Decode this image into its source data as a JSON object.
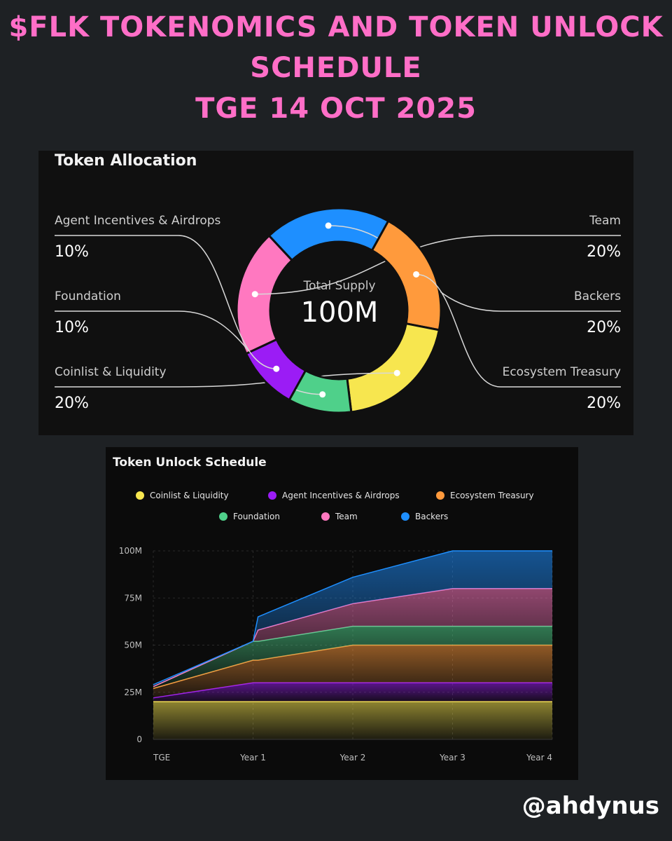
{
  "header": {
    "title_lines": [
      "$FLK TOKENOMICS AND TOKEN UNLOCK",
      "SCHEDULE",
      "TGE 14 OCT 2025"
    ]
  },
  "allocation": {
    "title": "Token Allocation",
    "center_label": "Total Supply",
    "center_value": "100M",
    "segments": [
      {
        "name": "Team",
        "label": "Team",
        "percent_label": "20%",
        "value": 20,
        "color": "#ff78c0"
      },
      {
        "name": "Backers",
        "label": "Backers",
        "percent_label": "20%",
        "value": 20,
        "color": "#1e8fff"
      },
      {
        "name": "Ecosystem Treasury",
        "label": "Ecosystem Treasury",
        "percent_label": "20%",
        "value": 20,
        "color": "#ff9a3c"
      },
      {
        "name": "Coinlist & Liquidity",
        "label": "Coinlist & Liquidity",
        "percent_label": "20%",
        "value": 20,
        "color": "#f7e64f"
      },
      {
        "name": "Foundation",
        "label": "Foundation",
        "percent_label": "10%",
        "value": 10,
        "color": "#4fd08a"
      },
      {
        "name": "Agent Incentives & Airdrops",
        "label": "Agent Incentives & Airdrops",
        "percent_label": "10%",
        "value": 10,
        "color": "#9b1cf5"
      }
    ]
  },
  "unlock": {
    "title": "Token Unlock Schedule",
    "legend": [
      {
        "label": "Coinlist & Liquidity",
        "color": "#f7e64f"
      },
      {
        "label": "Agent Incentives & Airdrops",
        "color": "#9b1cf5"
      },
      {
        "label": "Ecosystem Treasury",
        "color": "#ff9a3c"
      },
      {
        "label": "Foundation",
        "color": "#4fd08a"
      },
      {
        "label": "Team",
        "color": "#ff78c0"
      },
      {
        "label": "Backers",
        "color": "#1e8fff"
      }
    ]
  },
  "chart_data": {
    "type": "area",
    "stacked": true,
    "x": [
      0,
      1,
      1.05,
      2,
      3,
      4
    ],
    "x_ticks": [
      {
        "value": 0,
        "label": "TGE"
      },
      {
        "value": 1,
        "label": "Year 1"
      },
      {
        "value": 2,
        "label": "Year 2"
      },
      {
        "value": 3,
        "label": "Year 3"
      },
      {
        "value": 4,
        "label": "Year 4"
      }
    ],
    "y_ticks": [
      {
        "value": 0,
        "label": "0"
      },
      {
        "value": 25,
        "label": "25M"
      },
      {
        "value": 50,
        "label": "50M"
      },
      {
        "value": 75,
        "label": "75M"
      },
      {
        "value": 100,
        "label": "100M"
      }
    ],
    "ylim": [
      0,
      100
    ],
    "xlim": [
      0,
      4
    ],
    "grid": true,
    "series": [
      {
        "name": "Coinlist & Liquidity",
        "color": "#f7e64f",
        "values": [
          20,
          20,
          20,
          20,
          20,
          20
        ]
      },
      {
        "name": "Agent Incentives & Airdrops",
        "color": "#9b1cf5",
        "values": [
          2,
          10,
          10,
          10,
          10,
          10
        ]
      },
      {
        "name": "Ecosystem Treasury",
        "color": "#ff9a3c",
        "values": [
          5,
          12,
          12,
          20,
          20,
          20
        ]
      },
      {
        "name": "Foundation",
        "color": "#4fd08a",
        "values": [
          1,
          10,
          10,
          10,
          10,
          10
        ]
      },
      {
        "name": "Team",
        "color": "#ff78c0",
        "values": [
          0,
          0,
          6,
          12,
          20,
          20
        ]
      },
      {
        "name": "Backers",
        "color": "#1e8fff",
        "values": [
          1,
          0,
          7,
          14,
          20,
          20
        ]
      }
    ]
  },
  "footer": {
    "handle": "@ahdynus"
  }
}
